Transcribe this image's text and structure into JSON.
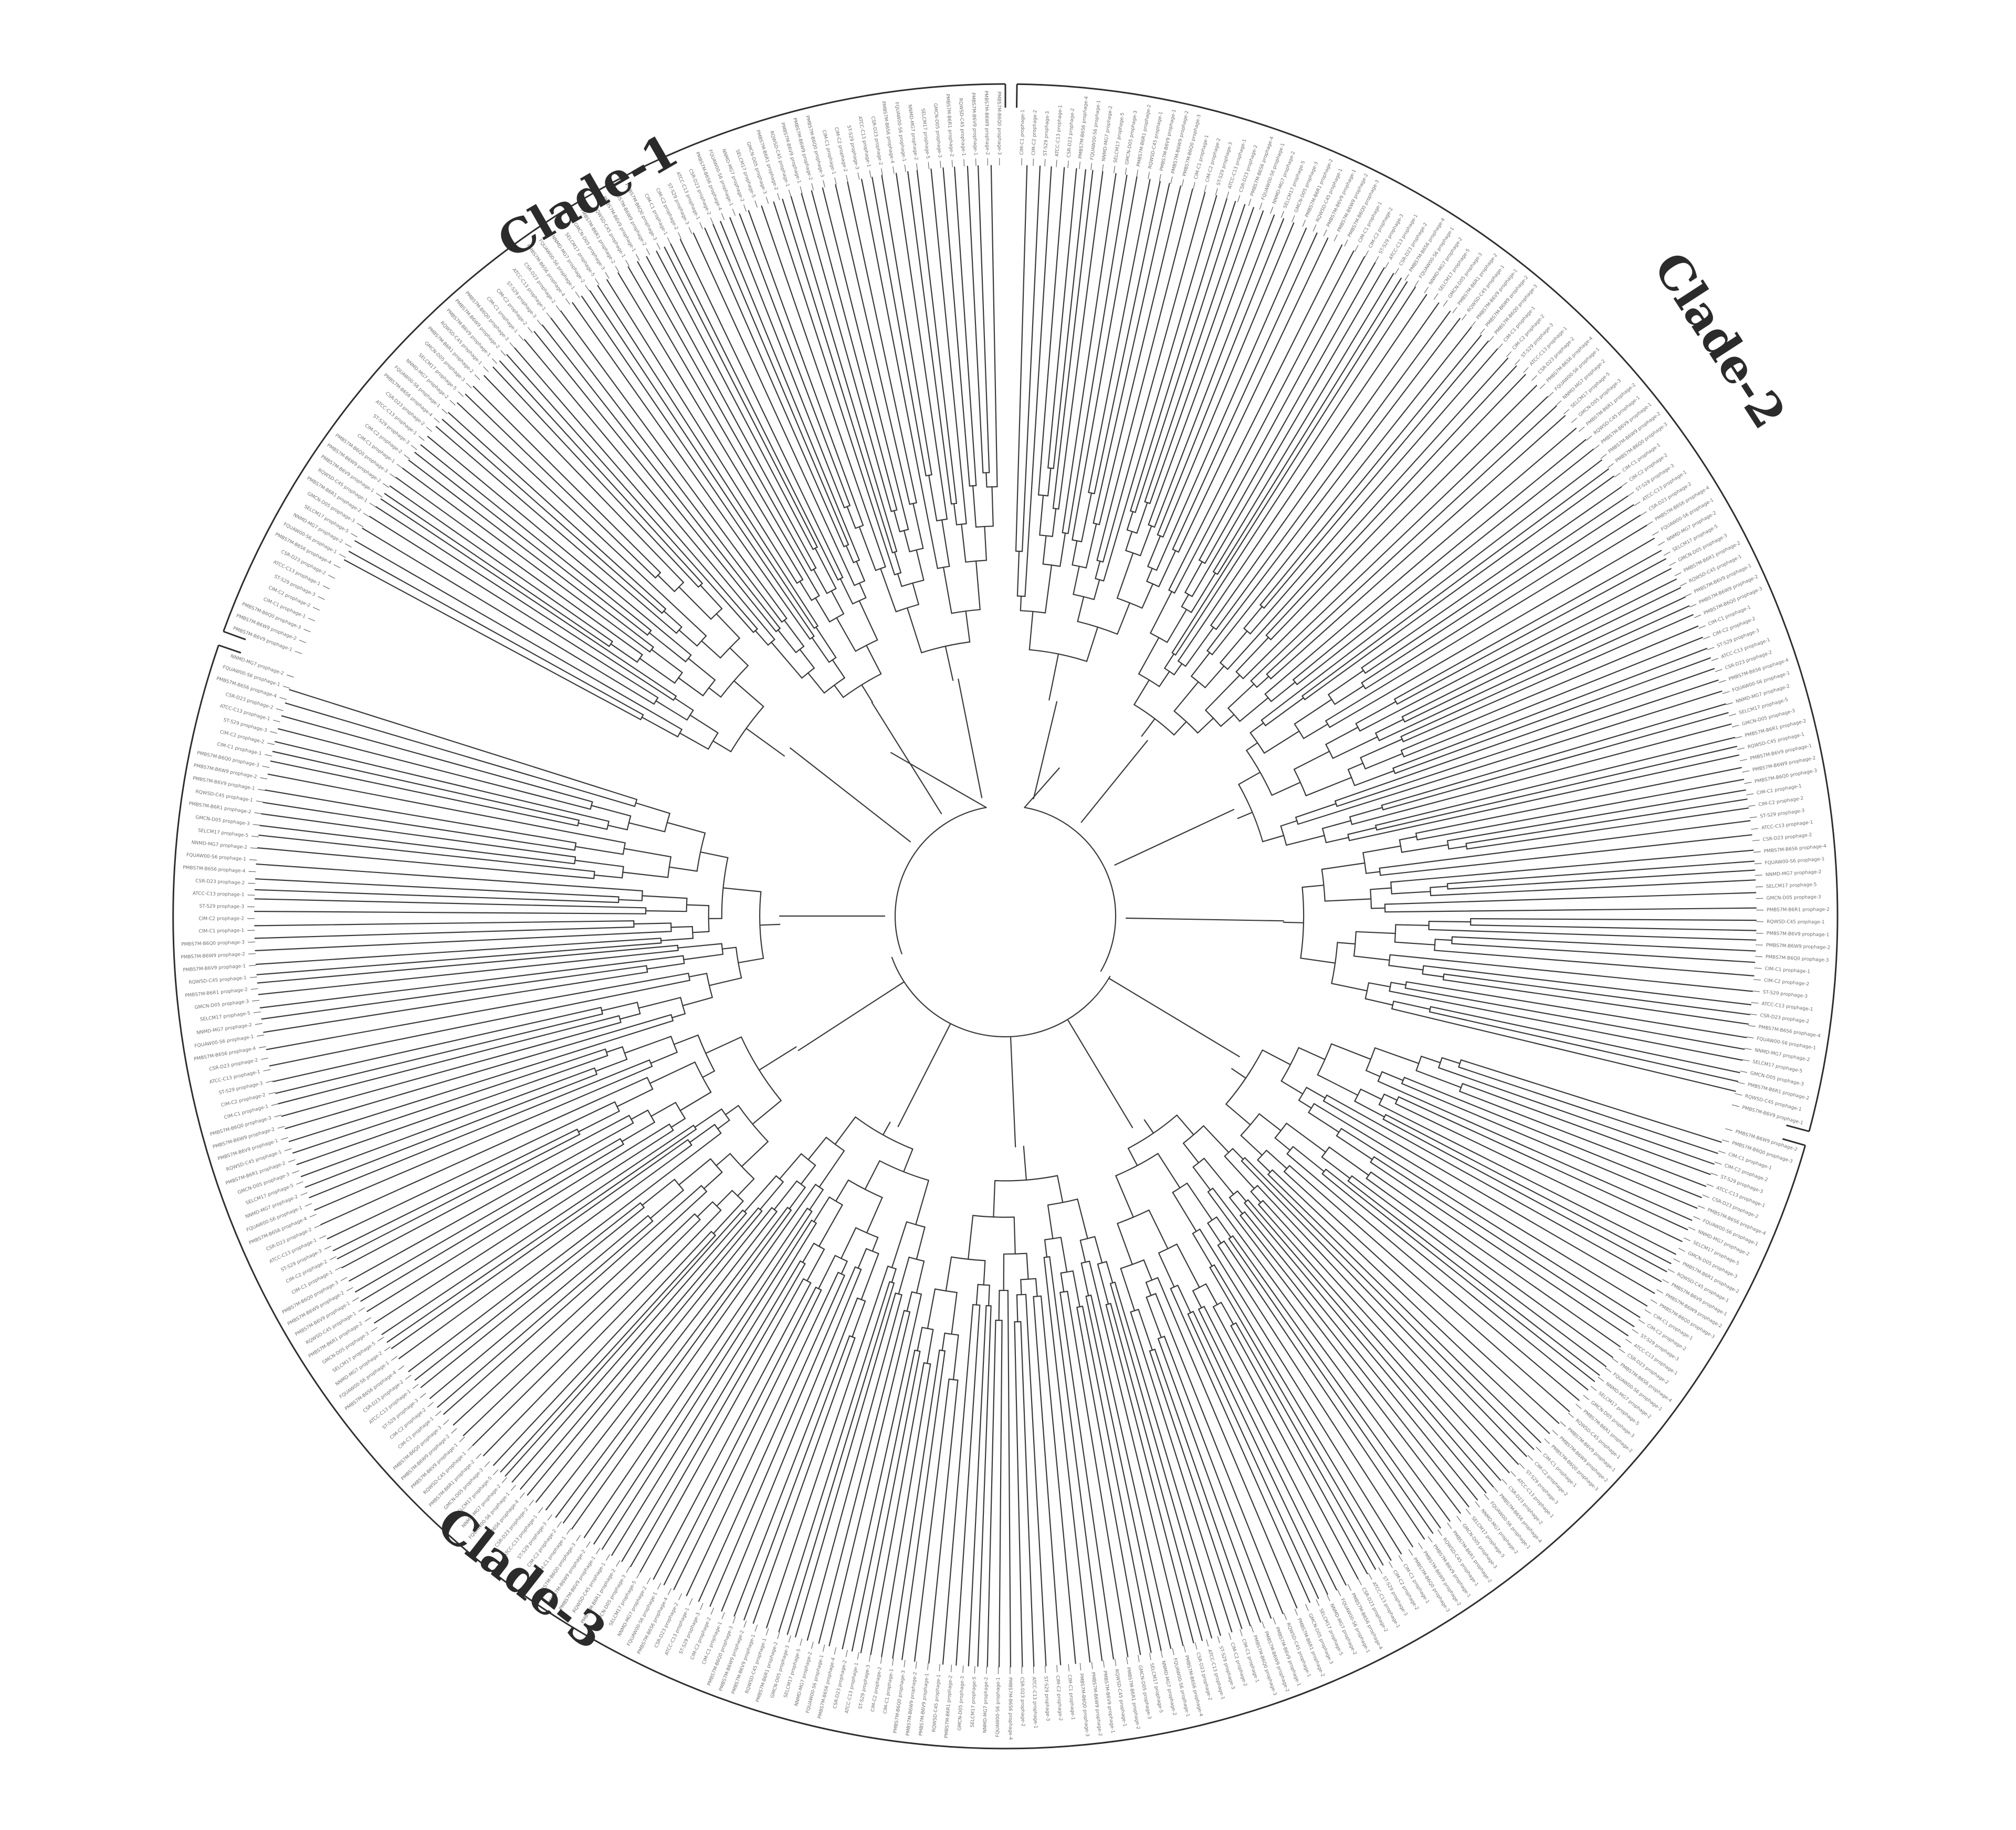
{
  "figure": {
    "clades": [
      {
        "id": "clade-1",
        "label": "Clade-1"
      },
      {
        "id": "clade-2",
        "label": "Clade-2"
      },
      {
        "id": "clade-3",
        "label": "Clade-3"
      }
    ],
    "tip_labels": [
      "PMBS7M-B6V9 prophage-1",
      "PMBS7M-B6W9 prophage-2",
      "PMBS7M-B6Q0 prophage-3",
      "CIM-C1 prophage-1",
      "CIM-C2 prophage-2",
      "ST-S29 prophage-3",
      "ATCC-C13 prophage-1",
      "CSR-D23 prophage-2",
      "PMBS7M-B6S6 prophage-4",
      "FQUAW00-S6 prophage-1",
      "NNMD-MG7 prophage-2",
      "SELCM17 prophage-5",
      "GMCN-D05 prophage-3",
      "PMBS7M-B6R1 prophage-2",
      "RQWSD-C45 prophage-1"
    ]
  }
}
